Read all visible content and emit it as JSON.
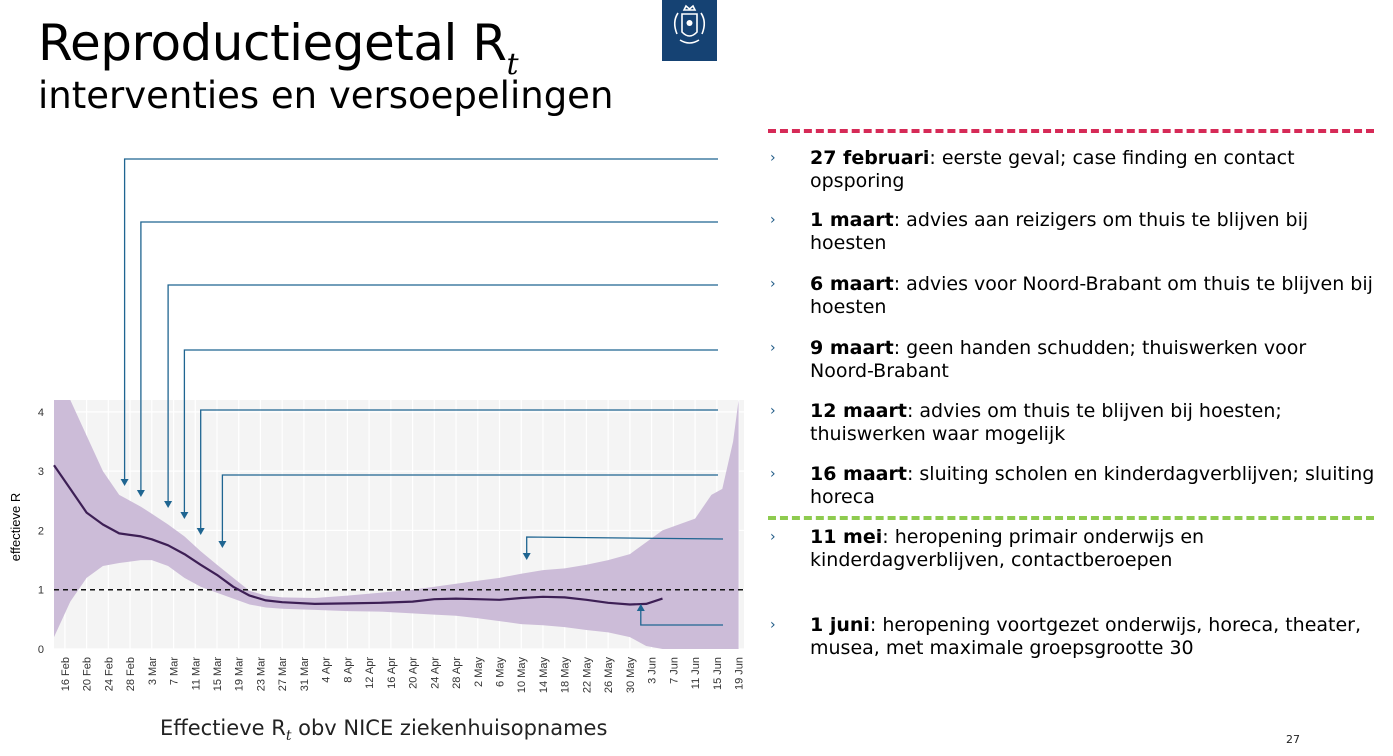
{
  "slide": {
    "title_main": "Reproductiegetal R",
    "title_sub": "t",
    "subtitle": "interventies en versoepelingen",
    "caption_pre": "Effectieve R",
    "caption_sub": "t",
    "caption_post": " obv NICE ziekenhuisopnames",
    "page_number": "27",
    "colors": {
      "logo": "#154273",
      "arrow": "#1f6591",
      "band": "#c9b8d6",
      "line": "#3d1f55",
      "red_sep": "#d62a57",
      "green_sep": "#8ecb4f"
    },
    "logo_icon": "crest-icon"
  },
  "events": [
    {
      "bullet": "›",
      "date": "27 februari",
      "text": ": eerste geval; case finding en contact opsporing"
    },
    {
      "bullet": "›",
      "date": "1 maart",
      "text": ": advies aan reizigers om thuis te blijven bij hoesten"
    },
    {
      "bullet": "›",
      "date": "6 maart",
      "text": ": advies voor Noord-Brabant om thuis te blijven bij hoesten"
    },
    {
      "bullet": "›",
      "date": "9 maart",
      "text": ": geen handen schudden; thuiswerken voor Noord-Brabant"
    },
    {
      "bullet": "›",
      "date": "12 maart",
      "text": ": advies om thuis te blijven bij hoesten; thuiswerken waar mogelijk"
    },
    {
      "bullet": "›",
      "date": "16 maart",
      "text": ": sluiting scholen en kinderdagverblijven; sluiting horeca"
    },
    {
      "bullet": "›",
      "date": "11 mei",
      "text": ": heropening primair onderwijs en kinderdagverblijven, contactberoepen"
    },
    {
      "bullet": "›",
      "date": "1 juni",
      "text": ": heropening voortgezet onderwijs, horeca, theater, musea, met maximale groepsgrootte 30"
    }
  ],
  "chart_data": {
    "type": "line",
    "ylabel": "effectieve R",
    "xlabel": "",
    "ylim": [
      0,
      4.2
    ],
    "yticks": [
      0,
      1,
      2,
      3,
      4
    ],
    "xlim": [
      "2020-02-14",
      "2020-06-20"
    ],
    "xticks": [
      "2020-02-16",
      "2020-02-20",
      "2020-02-24",
      "2020-02-28",
      "2020-03-03",
      "2020-03-07",
      "2020-03-11",
      "2020-03-15",
      "2020-03-19",
      "2020-03-23",
      "2020-03-27",
      "2020-03-31",
      "2020-04-04",
      "2020-04-08",
      "2020-04-12",
      "2020-04-16",
      "2020-04-20",
      "2020-04-24",
      "2020-04-28",
      "2020-05-02",
      "2020-05-06",
      "2020-05-10",
      "2020-05-14",
      "2020-05-18",
      "2020-05-22",
      "2020-05-26",
      "2020-05-30",
      "2020-06-03",
      "2020-06-07",
      "2020-06-11",
      "2020-06-15",
      "2020-06-19"
    ],
    "xtick_labels": [
      "16 Feb",
      "20 Feb",
      "24 Feb",
      "28 Feb",
      "3 Mar",
      "7 Mar",
      "11 Mar",
      "15 Mar",
      "19 Mar",
      "23 Mar",
      "27 Mar",
      "31 Mar",
      "4 Apr",
      "8 Apr",
      "12 Apr",
      "16 Apr",
      "20 Apr",
      "24 Apr",
      "28 Apr",
      "2 May",
      "6 May",
      "10 May",
      "14 May",
      "18 May",
      "22 May",
      "26 May",
      "30 May",
      "3 Jun",
      "7 Jun",
      "11 Jun",
      "15 Jun",
      "19 Jun"
    ],
    "grid": true,
    "reference_line": 1,
    "series": [
      {
        "kind": "estimate",
        "x": [
          "2020-02-14",
          "2020-02-17",
          "2020-02-20",
          "2020-02-23",
          "2020-02-26",
          "2020-03-01",
          "2020-03-03",
          "2020-03-06",
          "2020-03-09",
          "2020-03-12",
          "2020-03-15",
          "2020-03-18",
          "2020-03-21",
          "2020-03-24",
          "2020-03-27",
          "2020-04-02",
          "2020-04-08",
          "2020-04-14",
          "2020-04-20",
          "2020-04-24",
          "2020-04-28",
          "2020-05-02",
          "2020-05-06",
          "2020-05-10",
          "2020-05-14",
          "2020-05-18",
          "2020-05-22",
          "2020-05-26",
          "2020-05-30",
          "2020-06-02",
          "2020-06-05"
        ],
        "y": [
          3.1,
          2.7,
          2.3,
          2.1,
          1.95,
          1.9,
          1.85,
          1.75,
          1.6,
          1.42,
          1.25,
          1.05,
          0.9,
          0.82,
          0.79,
          0.76,
          0.77,
          0.78,
          0.8,
          0.84,
          0.85,
          0.84,
          0.83,
          0.86,
          0.88,
          0.87,
          0.83,
          0.78,
          0.75,
          0.76,
          0.85
        ]
      },
      {
        "kind": "confidence_band",
        "x": [
          "2020-02-14",
          "2020-02-17",
          "2020-02-20",
          "2020-02-23",
          "2020-02-26",
          "2020-03-01",
          "2020-03-03",
          "2020-03-06",
          "2020-03-09",
          "2020-03-12",
          "2020-03-15",
          "2020-03-18",
          "2020-03-21",
          "2020-03-24",
          "2020-03-27",
          "2020-04-02",
          "2020-04-08",
          "2020-04-14",
          "2020-04-20",
          "2020-04-24",
          "2020-04-28",
          "2020-05-02",
          "2020-05-06",
          "2020-05-10",
          "2020-05-14",
          "2020-05-18",
          "2020-05-22",
          "2020-05-26",
          "2020-05-30",
          "2020-06-02",
          "2020-06-05",
          "2020-06-08",
          "2020-06-11",
          "2020-06-14",
          "2020-06-16",
          "2020-06-18",
          "2020-06-19"
        ],
        "upper": [
          4.2,
          4.2,
          3.6,
          3.0,
          2.6,
          2.4,
          2.28,
          2.1,
          1.9,
          1.65,
          1.42,
          1.2,
          0.98,
          0.9,
          0.87,
          0.86,
          0.9,
          0.95,
          1.0,
          1.05,
          1.1,
          1.15,
          1.2,
          1.27,
          1.33,
          1.36,
          1.42,
          1.5,
          1.6,
          1.8,
          2.0,
          2.1,
          2.2,
          2.6,
          2.7,
          3.5,
          4.2
        ],
        "lower": [
          0.2,
          0.8,
          1.2,
          1.4,
          1.45,
          1.5,
          1.5,
          1.4,
          1.2,
          1.05,
          0.95,
          0.85,
          0.75,
          0.7,
          0.68,
          0.66,
          0.64,
          0.63,
          0.6,
          0.58,
          0.56,
          0.52,
          0.47,
          0.42,
          0.4,
          0.37,
          0.32,
          0.28,
          0.2,
          0.05,
          0.0,
          0.0,
          0.0,
          0.0,
          0.0,
          0.0,
          0.0
        ]
      }
    ],
    "intervention_dates": [
      "2020-02-27",
      "2020-03-01",
      "2020-03-06",
      "2020-03-09",
      "2020-03-12",
      "2020-03-16",
      "2020-05-11",
      "2020-06-01"
    ]
  }
}
